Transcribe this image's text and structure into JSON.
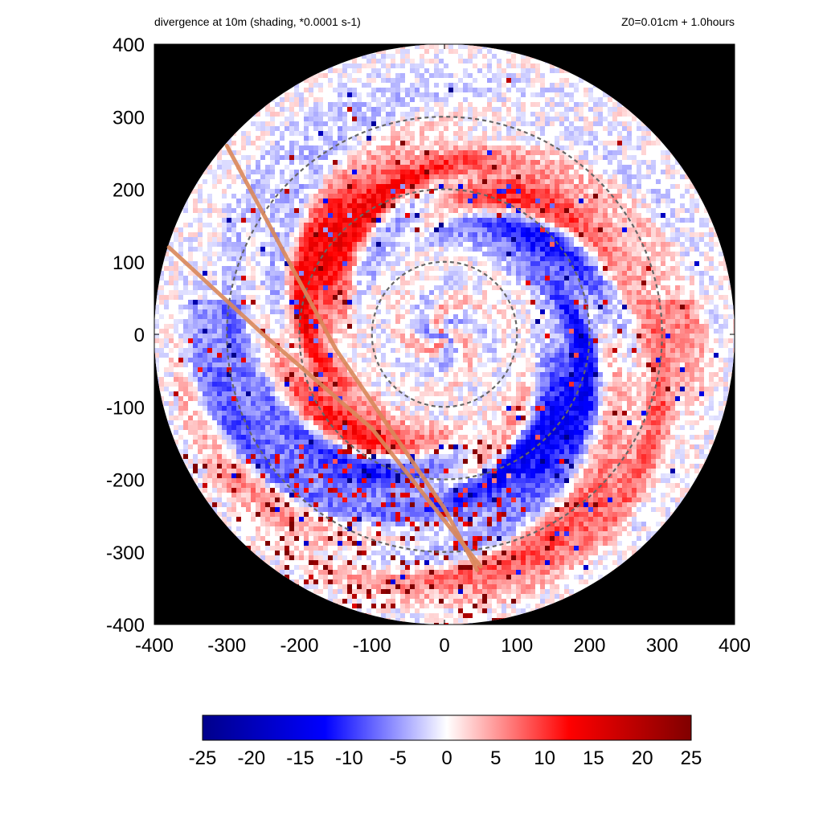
{
  "title_left": "divergence at 10m (shading, *0.0001 s-1)",
  "title_right": "Z0=0.01cm  + 1.0hours",
  "chart_data": {
    "type": "heatmap",
    "title": "divergence at 10m (shading, *0.0001 s-1)",
    "subtitle": "Z0=0.01cm  + 1.0hours",
    "xlabel": "",
    "ylabel": "",
    "xlim": [
      -400,
      400
    ],
    "ylim": [
      -400,
      400
    ],
    "x_ticks": [
      -400,
      -300,
      -200,
      -100,
      0,
      100,
      200,
      300,
      400
    ],
    "y_ticks": [
      400,
      300,
      200,
      100,
      0,
      -100,
      -200,
      -300,
      -400
    ],
    "x_tick_labels": [
      "-400",
      "-300",
      "-200",
      "-100",
      "0",
      "100",
      "200",
      "300",
      "400"
    ],
    "y_tick_labels": [
      "400",
      "300",
      "200",
      "100",
      "0",
      "-100",
      "-200",
      "-300",
      "-400"
    ],
    "domain_radius": 400,
    "outside_domain_color": "#000000",
    "dashed_circles_radii": [
      100,
      200,
      300
    ],
    "track_lines": [
      {
        "points": [
          [
            -300,
            260
          ],
          [
            -150,
            -20
          ],
          [
            0,
            -240
          ],
          [
            45,
            -325
          ]
        ]
      },
      {
        "points": [
          [
            -380,
            120
          ],
          [
            -250,
            0
          ],
          [
            -100,
            -130
          ],
          [
            50,
            -320
          ]
        ]
      }
    ],
    "colorbar": {
      "min": -25,
      "max": 25,
      "ticks": [
        -25,
        -20,
        -15,
        -10,
        -5,
        0,
        5,
        10,
        15,
        20,
        25
      ],
      "tick_labels": [
        "-25",
        "-20",
        "-15",
        "-10",
        "-5",
        "0",
        "5",
        "10",
        "15",
        "20",
        "25"
      ],
      "colors": [
        "#00008b",
        "#0000ff",
        "#ffffff",
        "#ff0000",
        "#800000"
      ]
    },
    "colors": {
      "dashed_circle": "#666666",
      "track_line": "#d9875a"
    }
  }
}
